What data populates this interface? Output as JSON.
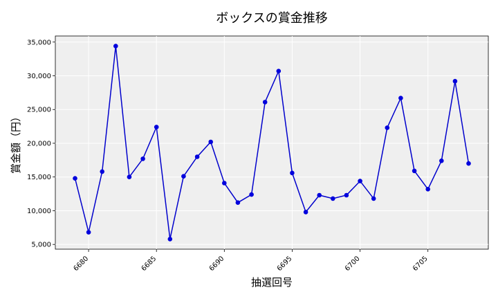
{
  "chart_data": {
    "type": "line",
    "title": "ボックスの賞金推移",
    "xlabel": "抽選回号",
    "ylabel": "賞金額（円）",
    "x": [
      6679,
      6680,
      6681,
      6682,
      6683,
      6684,
      6685,
      6686,
      6687,
      6688,
      6689,
      6690,
      6691,
      6692,
      6693,
      6694,
      6695,
      6696,
      6697,
      6698,
      6699,
      6700,
      6701,
      6702,
      6703,
      6704,
      6705,
      6706,
      6707,
      6708
    ],
    "series": [
      {
        "values": [
          14800,
          6800,
          15800,
          34400,
          15000,
          17700,
          22400,
          5800,
          15100,
          18000,
          20200,
          14100,
          11200,
          12400,
          26100,
          30700,
          15600,
          9800,
          12300,
          11800,
          12300,
          14400,
          11800,
          22300,
          26700,
          15900,
          13200,
          17400,
          29200,
          17000
        ]
      }
    ],
    "xlim": [
      6677.55,
      6709.45
    ],
    "ylim": [
      4300,
      35900
    ],
    "xticks": [
      6680,
      6685,
      6690,
      6695,
      6700,
      6705
    ],
    "xtick_labels": [
      "6680",
      "6685",
      "6690",
      "6695",
      "6700",
      "6705"
    ],
    "yticks": [
      5000,
      10000,
      15000,
      20000,
      25000,
      30000,
      35000
    ],
    "ytick_labels": [
      "5,000",
      "10,000",
      "15,000",
      "20,000",
      "25,000",
      "30,000",
      "35,000"
    ],
    "grid": true,
    "line_color": "#0000cc",
    "marker_color": "#0000dd",
    "plot_background": "#efefef"
  }
}
